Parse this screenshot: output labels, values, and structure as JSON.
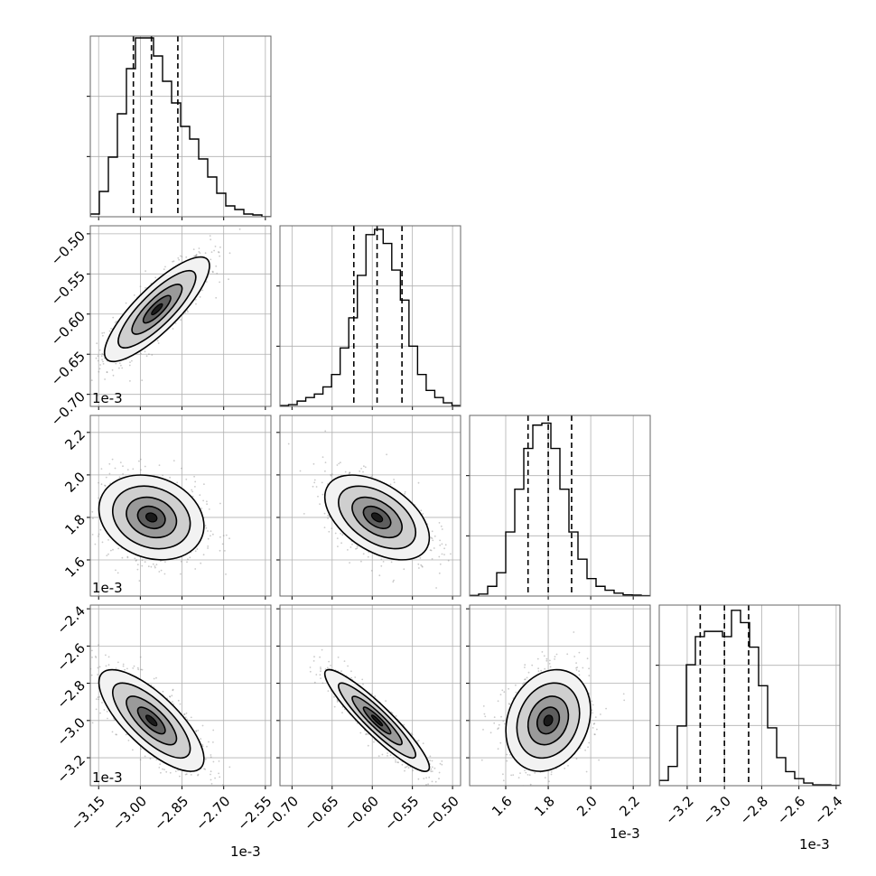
{
  "chart_data": {
    "type": "corner",
    "n_params": 4,
    "colors": {
      "frame": "#000000",
      "grid": "#b0b0b0",
      "density": "#000000",
      "scatter": "#8a8a8a",
      "background": "#ffffff"
    },
    "offset_label": "1e-3",
    "axes": [
      {
        "range": [
          -3.18,
          -2.53
        ],
        "ticks": [
          -3.15,
          -3.0,
          -2.85,
          -2.7,
          -2.55
        ],
        "tick_labels": [
          "−3.15",
          "−3.00",
          "−2.85",
          "−2.70",
          "−2.55"
        ]
      },
      {
        "range": [
          -0.715,
          -0.49
        ],
        "ticks": [
          -0.7,
          -0.65,
          -0.6,
          -0.55,
          -0.5
        ],
        "tick_labels": [
          "−0.70",
          "−0.65",
          "−0.60",
          "−0.55",
          "−0.50"
        ]
      },
      {
        "range": [
          1.43,
          2.28
        ],
        "ticks": [
          1.6,
          1.8,
          2.0,
          2.2
        ],
        "tick_labels": [
          "1.6",
          "1.8",
          "2.0",
          "2.2"
        ]
      },
      {
        "range": [
          -3.35,
          -2.38
        ],
        "ticks": [
          -3.2,
          -3.0,
          -2.8,
          -2.6,
          -2.4
        ],
        "tick_labels": [
          "−3.2",
          "−3.0",
          "−2.8",
          "−2.6",
          "−2.4"
        ]
      }
    ],
    "quantiles": [
      [
        -3.025,
        -2.96,
        -2.865
      ],
      [
        -0.623,
        -0.594,
        -0.563
      ],
      [
        1.705,
        1.8,
        1.91
      ],
      [
        -3.13,
        -3.0,
        -2.87
      ]
    ],
    "histograms": [
      {
        "counts": [
          1.5,
          14,
          33,
          57,
          82,
          99,
          99,
          89,
          75,
          63,
          50,
          43,
          32,
          22,
          13,
          6,
          4,
          1.5,
          1,
          0
        ],
        "ymax": 100
      },
      {
        "counts": [
          0.5,
          1,
          3,
          5,
          7,
          11,
          18,
          33,
          50,
          74,
          97,
          100,
          92,
          77,
          60,
          34,
          18,
          9,
          5,
          2,
          0.5
        ],
        "ymax": 102
      },
      {
        "counts": [
          0.3,
          1,
          5,
          12,
          33,
          55,
          76,
          88,
          89,
          76,
          55,
          33,
          19,
          9,
          5,
          3,
          1.5,
          0.6,
          0.5,
          0.2
        ],
        "ymax": 93
      },
      {
        "counts": [
          3,
          11,
          34,
          69,
          85,
          88,
          88,
          85,
          100,
          93,
          79,
          57,
          33,
          16,
          8,
          4,
          1.5,
          0.5,
          0.5,
          0.2
        ],
        "ymax": 103
      }
    ],
    "pairs": [
      {
        "row": 1,
        "col": 0,
        "mean": [
          -2.94,
          -0.594
        ],
        "std": [
          0.09,
          0.031
        ],
        "rho": 0.83
      },
      {
        "row": 2,
        "col": 0,
        "mean": [
          -2.96,
          1.8
        ],
        "std": [
          0.09,
          0.095
        ],
        "rho": -0.2
      },
      {
        "row": 2,
        "col": 1,
        "mean": [
          -0.594,
          1.8
        ],
        "std": [
          0.031,
          0.095
        ],
        "rho": -0.48
      },
      {
        "row": 3,
        "col": 0,
        "mean": [
          -2.96,
          -3.0
        ],
        "std": [
          0.09,
          0.13
        ],
        "rho": -0.75
      },
      {
        "row": 3,
        "col": 1,
        "mean": [
          -0.594,
          -3.0
        ],
        "std": [
          0.031,
          0.13
        ],
        "rho": -0.92
      },
      {
        "row": 3,
        "col": 2,
        "mean": [
          1.8,
          -3.0
        ],
        "std": [
          0.095,
          0.13
        ],
        "rho": 0.2
      }
    ],
    "contour_levels": [
      {
        "r": 0.55,
        "fill": "#5e5e5e"
      },
      {
        "r": 1.0,
        "fill": "#9a9a9a"
      },
      {
        "r": 1.55,
        "fill": "#cfcfcf"
      },
      {
        "r": 2.1,
        "fill": "#f2f2f2"
      }
    ],
    "grid": true
  }
}
